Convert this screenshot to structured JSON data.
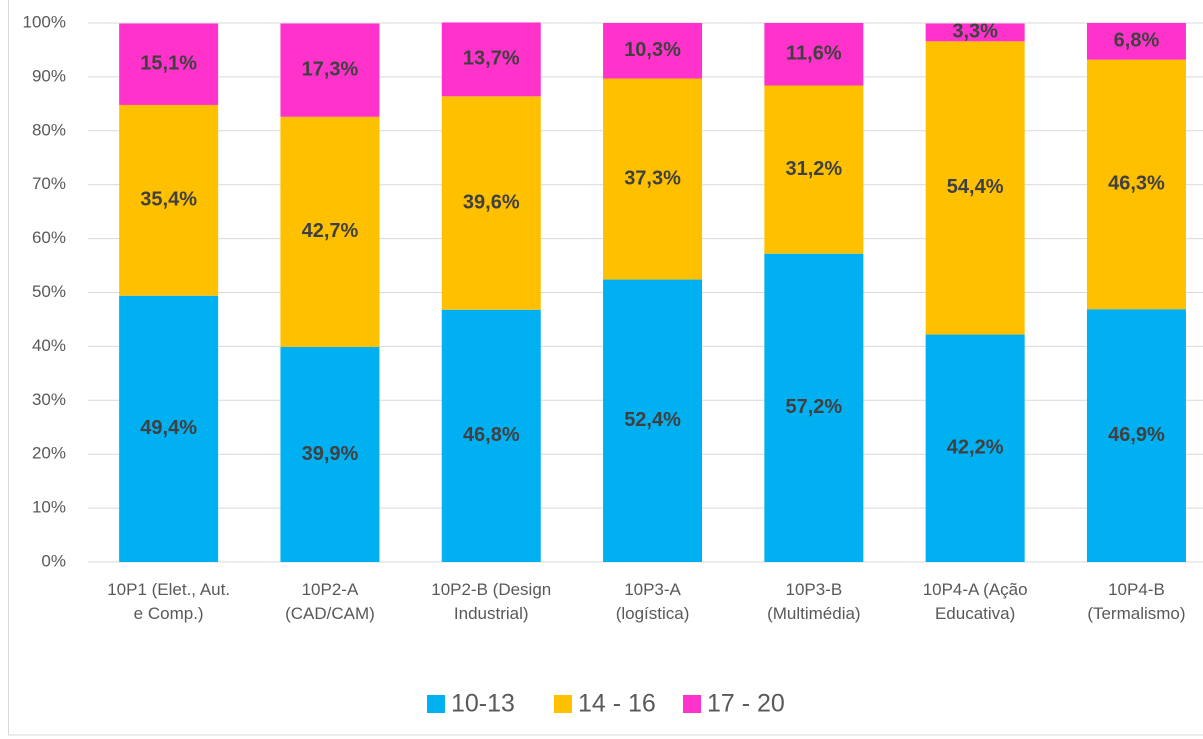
{
  "chart_data": {
    "type": "stacked_bar",
    "categories": [
      "10P1 (Elet., Aut.\ne Comp.)",
      "10P2-A\n(CAD/CAM)",
      "10P2-B (Design\nIndustrial)",
      "10P3-A\n(logística)",
      "10P3-B\n(Multimédia)",
      "10P4-A (Ação\nEducativa)",
      "10P4-B\n(Termalismo)"
    ],
    "series": [
      {
        "name": "10-13",
        "color": "#00b0f0",
        "values": [
          49.4,
          39.9,
          46.8,
          52.4,
          57.2,
          42.2,
          46.9
        ],
        "value_labels": [
          "49,4%",
          "39,9%",
          "46,8%",
          "52,4%",
          "57,2%",
          "42,2%",
          "46,9%"
        ]
      },
      {
        "name": "14 - 16",
        "color": "#ffc000",
        "values": [
          35.4,
          42.7,
          39.6,
          37.3,
          31.2,
          54.4,
          46.3
        ],
        "value_labels": [
          "35,4%",
          "42,7%",
          "39,6%",
          "37,3%",
          "31,2%",
          "54,4%",
          "46,3%"
        ]
      },
      {
        "name": "17 - 20",
        "color": "#ff33cc",
        "values": [
          15.1,
          17.3,
          13.7,
          10.3,
          11.6,
          3.3,
          6.8
        ],
        "value_labels": [
          "15,1%",
          "17,3%",
          "13,7%",
          "10,3%",
          "11,6%",
          "3,3%",
          "6,8%"
        ]
      }
    ],
    "ylim": [
      0,
      100
    ],
    "yticks": [
      {
        "value": 0,
        "label": "0%"
      },
      {
        "value": 10,
        "label": "10%"
      },
      {
        "value": 20,
        "label": "20%"
      },
      {
        "value": 30,
        "label": "30%"
      },
      {
        "value": 40,
        "label": "40%"
      },
      {
        "value": 50,
        "label": "50%"
      },
      {
        "value": 60,
        "label": "60%"
      },
      {
        "value": 70,
        "label": "70%"
      },
      {
        "value": 80,
        "label": "80%"
      },
      {
        "value": 90,
        "label": "90%"
      },
      {
        "value": 100,
        "label": "100%"
      }
    ],
    "grid": true,
    "legend": "bottom"
  }
}
